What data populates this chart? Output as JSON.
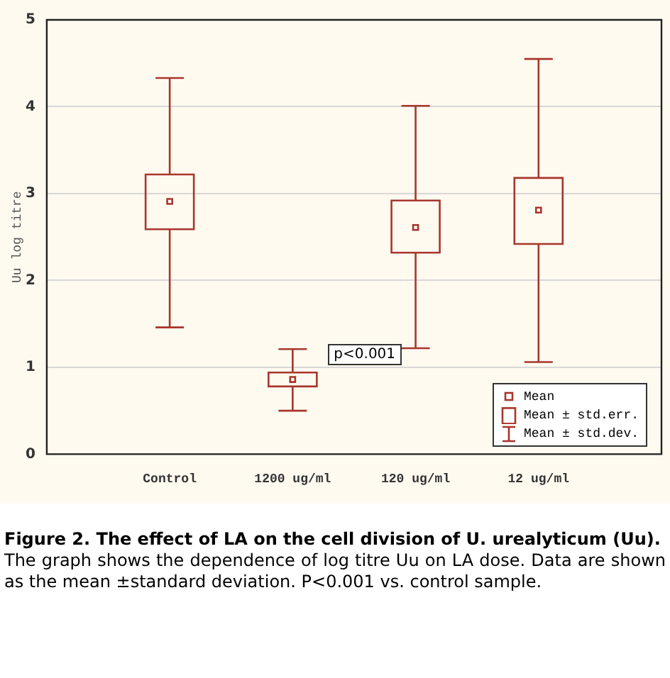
{
  "chart_data": {
    "type": "box",
    "title": "Figure 2. The effect of LA on the cell division of U. urealyticum (Uu).",
    "subtitle": "The graph shows the dependence of log titre Uu on LA dose. Data are shown as the mean ±standard deviation. P<0.001 vs. control sample.",
    "ylabel": "Uu log titre",
    "categories": [
      "Control",
      "1200 ug/ml",
      "120 ug/ml",
      "12 ug/ml"
    ],
    "series": [
      {
        "name": "Mean ± std.dev.",
        "color": "#a8362c",
        "boxes": [
          {
            "low": 1.46,
            "q1": 2.59,
            "median": 2.91,
            "q3": 3.22,
            "high": 4.33
          },
          {
            "low": 0.5,
            "q1": 0.78,
            "median": 0.86,
            "q3": 0.94,
            "high": 1.21
          },
          {
            "low": 1.22,
            "q1": 2.32,
            "median": 2.61,
            "q3": 2.92,
            "high": 4.01
          },
          {
            "low": 1.06,
            "q1": 2.42,
            "median": 2.81,
            "q3": 3.18,
            "high": 4.55
          }
        ]
      }
    ],
    "ylim": [
      0,
      5
    ],
    "yticks": [
      0,
      1,
      2,
      3,
      4,
      5
    ],
    "grid": "y",
    "legend": "bottom right",
    "marker": "square",
    "annotations": [
      {
        "text": "p<0.001",
        "x": "1200 ug/ml",
        "y": 1.15
      },
      "Mean",
      "Mean ± std.err."
    ]
  }
}
